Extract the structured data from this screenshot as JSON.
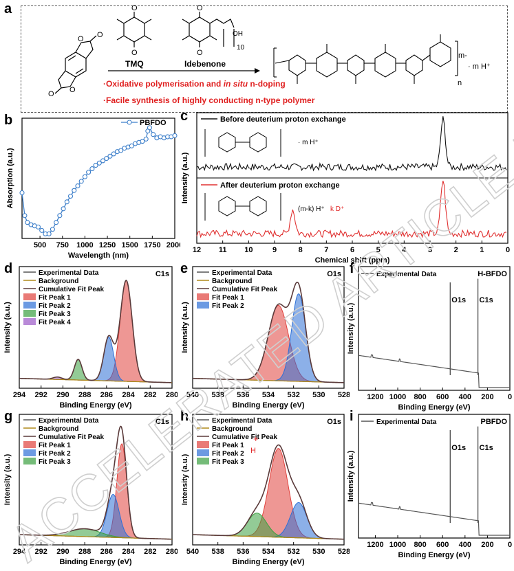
{
  "panels": {
    "a": {
      "label": "a",
      "reagent1": "TMQ",
      "reagent2": "Idebenone",
      "subscript10": "10",
      "oh": "OH",
      "bullet1_pre": "·Oxidative polymerisation and ",
      "bullet1_em": "in situ",
      "bullet1_post": " n-doping",
      "bullet2": "·Facile synthesis of highly conducting n-type polymer",
      "charge_label": "m-",
      "counter_label": "· m H⁺",
      "repeat_label": "n"
    },
    "b": {
      "label": "b"
    },
    "c": {
      "label": "c",
      "top_title": "Before deuterium proton exchange",
      "bottom_title": "After deuterium proton exchange",
      "top_counter": "· m H⁺",
      "bottom_counter_1": "(m-k) H⁺",
      "bottom_counter_2": "k D⁺"
    },
    "d": {
      "label": "d"
    },
    "e": {
      "label": "e"
    },
    "f": {
      "label": "f"
    },
    "g": {
      "label": "g"
    },
    "h": {
      "label": "h",
      "plus": "+",
      "h_atom": "H"
    },
    "i": {
      "label": "i"
    }
  },
  "watermark": "ACCELERATED ARTICLE PREVIEW",
  "colors": {
    "blue_series": "#3a7dc9",
    "exp": "#555555",
    "background": "#b08a1a",
    "cumulative": "#5a3a3a",
    "peak1": "#e0413c",
    "peak2": "#2d6fd6",
    "peak3": "#3aa040",
    "peak4": "#9b59c8",
    "red_text": "#e02020",
    "nmr_after": "#e03030"
  },
  "chart_data": [
    {
      "id": "b",
      "type": "line",
      "xlabel": "Wavelength (nm)",
      "ylabel": "Absorption (a.u.)",
      "xlim": [
        300,
        2000
      ],
      "ylim": [
        0,
        1
      ],
      "xticks": [
        "500",
        "750",
        "1000",
        "1250",
        "1500",
        "1750",
        "2000"
      ],
      "legend": "top-right",
      "series": [
        {
          "name": "PBFDO",
          "x": [
            300,
            330,
            360,
            400,
            440,
            480,
            520,
            560,
            600,
            640,
            680,
            720,
            760,
            800,
            840,
            880,
            920,
            960,
            1000,
            1040,
            1080,
            1120,
            1160,
            1200,
            1240,
            1280,
            1320,
            1360,
            1400,
            1440,
            1480,
            1520,
            1560,
            1600,
            1640,
            1680,
            1700,
            1720,
            1760,
            1800,
            1840,
            1880,
            1920,
            1960,
            2000
          ],
          "values": [
            0.4,
            0.2,
            0.14,
            0.12,
            0.11,
            0.1,
            0.07,
            0.04,
            0.04,
            0.08,
            0.14,
            0.2,
            0.26,
            0.32,
            0.37,
            0.42,
            0.46,
            0.5,
            0.54,
            0.58,
            0.61,
            0.64,
            0.66,
            0.68,
            0.7,
            0.72,
            0.74,
            0.76,
            0.77,
            0.79,
            0.8,
            0.81,
            0.83,
            0.84,
            0.85,
            0.87,
            0.94,
            0.97,
            0.91,
            0.88,
            0.89,
            0.88,
            0.89,
            0.89,
            0.9
          ]
        }
      ]
    },
    {
      "id": "c",
      "type": "line",
      "xlabel": "Chemical shift (ppm)",
      "ylabel": "Intensity (a.u.)",
      "xlim": [
        12,
        0
      ],
      "xticks": [
        "12",
        "11",
        "10",
        "9",
        "8",
        "7",
        "6",
        "5",
        "4",
        "3",
        "2",
        "1",
        "0"
      ],
      "series": [
        {
          "name": "Before deuterium proton exchange",
          "peaks": [
            [
              2.5,
              1.0
            ]
          ]
        },
        {
          "name": "After deuterium proton exchange",
          "peaks": [
            [
              2.5,
              1.0
            ],
            [
              8.3,
              0.45
            ]
          ]
        }
      ]
    },
    {
      "id": "d",
      "type": "line",
      "xlabel": "Binding Energy (eV)",
      "ylabel": "Intensity (a.u.)",
      "xlim": [
        294,
        280
      ],
      "xticks": [
        "294",
        "292",
        "290",
        "288",
        "286",
        "284",
        "282",
        "280"
      ],
      "annotation": "C1s",
      "legend": "top-left",
      "legend_entries": [
        "Experimental Data",
        "Background",
        "Cumulative Fit Peak",
        "Fit Peak 1",
        "Fit Peak 2",
        "Fit Peak 3",
        "Fit Peak 4"
      ],
      "peaks": [
        {
          "name": "Fit Peak 1",
          "center": 284.2,
          "height": 0.83,
          "width": 0.55
        },
        {
          "name": "Fit Peak 2",
          "center": 285.8,
          "height": 0.36,
          "width": 0.45
        },
        {
          "name": "Fit Peak 3",
          "center": 288.6,
          "height": 0.17,
          "width": 0.35
        },
        {
          "name": "Fit Peak 4",
          "center": 290.5,
          "height": 0.02,
          "width": 0.4
        }
      ]
    },
    {
      "id": "e",
      "type": "line",
      "xlabel": "Binding Energy (eV)",
      "ylabel": "Intensity (a.u.)",
      "xlim": [
        540,
        528
      ],
      "xticks": [
        "540",
        "538",
        "536",
        "534",
        "532",
        "530",
        "528"
      ],
      "annotation": "O1s",
      "legend": "top-left",
      "legend_entries": [
        "Experimental Data",
        "Background",
        "Cumulative Fit Peak",
        "Fit Peak 1",
        "Fit Peak 2"
      ],
      "peaks": [
        {
          "name": "Fit Peak 1",
          "center": 533.2,
          "height": 0.62,
          "width": 0.8
        },
        {
          "name": "Fit Peak 2",
          "center": 531.6,
          "height": 0.72,
          "width": 0.55
        }
      ]
    },
    {
      "id": "f",
      "type": "line",
      "xlabel": "Binding Energy (eV)",
      "ylabel": "Intensity (a.u.)",
      "xlim": [
        1350,
        0
      ],
      "xticks": [
        "1200",
        "1000",
        "800",
        "600",
        "400",
        "200",
        "0"
      ],
      "annotation": "H-BFDO",
      "legend_entries": [
        "Experimental Data"
      ],
      "labels": [
        "O1s",
        "C1s"
      ],
      "lines": [
        [
          532,
          0.85
        ],
        [
          285,
          0.88
        ]
      ]
    },
    {
      "id": "g",
      "type": "line",
      "xlabel": "Binding Energy (eV)",
      "ylabel": "Intensity (a.u.)",
      "xlim": [
        294,
        280
      ],
      "xticks": [
        "294",
        "292",
        "290",
        "288",
        "286",
        "284",
        "282",
        "280"
      ],
      "annotation": "C1s",
      "legend": "top-left",
      "legend_entries": [
        "Experimental Data",
        "Background",
        "Cumulative Fit Peak",
        "Fit Peak 1",
        "Fit Peak 2",
        "Fit Peak 3"
      ],
      "peaks": [
        {
          "name": "Fit Peak 1",
          "center": 284.6,
          "height": 0.72,
          "width": 0.45
        },
        {
          "name": "Fit Peak 2",
          "center": 285.4,
          "height": 0.33,
          "width": 0.55
        },
        {
          "name": "Fit Peak 3",
          "center": 288.0,
          "height": 0.06,
          "width": 1.4
        }
      ]
    },
    {
      "id": "h",
      "type": "line",
      "xlabel": "Binding Energy (eV)",
      "ylabel": "Intensity (a.u.)",
      "xlim": [
        540,
        528
      ],
      "xticks": [
        "540",
        "538",
        "536",
        "534",
        "532",
        "530",
        "528"
      ],
      "annotation": "O1s",
      "legend": "top-left",
      "legend_entries": [
        "Experimental Data",
        "Background",
        "Cumulative Fit Peak",
        "Fit Peak 1",
        "Fit Peak 2",
        "Fit Peak 3"
      ],
      "peaks": [
        {
          "name": "Fit Peak 1",
          "center": 533.2,
          "height": 0.68,
          "width": 0.75
        },
        {
          "name": "Fit Peak 2",
          "center": 531.6,
          "height": 0.27,
          "width": 0.65
        },
        {
          "name": "Fit Peak 3",
          "center": 534.9,
          "height": 0.18,
          "width": 0.75
        }
      ]
    },
    {
      "id": "i",
      "type": "line",
      "xlabel": "Binding Energy (eV)",
      "ylabel": "Intensity (a.u.)",
      "xlim": [
        1350,
        0
      ],
      "xticks": [
        "1200",
        "1000",
        "800",
        "600",
        "400",
        "200",
        "0"
      ],
      "annotation": "PBFDO",
      "legend_entries": [
        "Experimental Data"
      ],
      "labels": [
        "O1s",
        "C1s"
      ],
      "lines": [
        [
          532,
          0.85
        ],
        [
          285,
          0.88
        ]
      ]
    }
  ]
}
